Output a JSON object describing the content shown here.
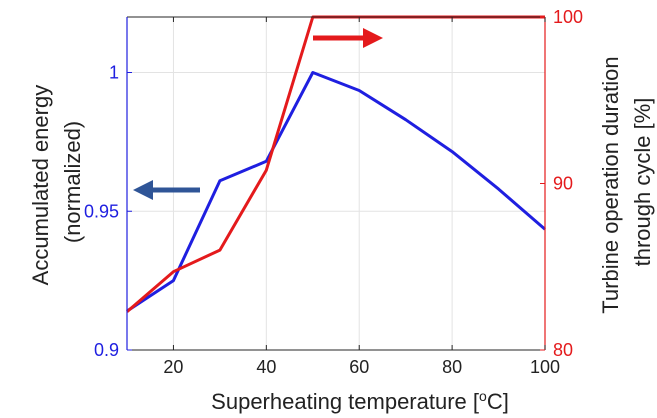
{
  "chart_data": {
    "type": "line",
    "xlabel": "Superheating temperature [",
    "xlabel_sup": "o",
    "xlabel_suffix": "C]",
    "ylabel_left": [
      "Accumulated energy",
      "(normalized)"
    ],
    "ylabel_right": [
      "Turbine operation duration",
      "through cycle [%]"
    ],
    "xlim": [
      10,
      100
    ],
    "ylim_left": [
      0.9,
      1.02
    ],
    "ylim_right": [
      80,
      100
    ],
    "x_ticks": [
      20,
      40,
      60,
      80,
      100
    ],
    "y_left_ticks": [
      "0.9",
      "0.95",
      "1"
    ],
    "y_left_tick_values": [
      0.9,
      0.95,
      1.0
    ],
    "y_right_ticks": [
      "80",
      "90",
      "100"
    ],
    "y_right_tick_values": [
      80,
      90,
      100
    ],
    "grid": true,
    "series": [
      {
        "axis": "left",
        "color": "#1f1fe0",
        "x": [
          10,
          20,
          30,
          40,
          50,
          60,
          70,
          80,
          90,
          100
        ],
        "y": [
          0.914,
          0.925,
          0.961,
          0.968,
          1.0,
          0.9935,
          0.983,
          0.9715,
          0.958,
          0.9435
        ]
      },
      {
        "axis": "right",
        "color": "#e41a1c",
        "x": [
          10,
          20,
          30,
          40,
          50,
          60,
          70,
          80,
          90,
          100
        ],
        "y": [
          82.3,
          84.7,
          86.0,
          90.8,
          100,
          100,
          100,
          100,
          100,
          100
        ]
      }
    ],
    "annotations": [
      {
        "type": "arrow",
        "direction": "left",
        "color": "#2f5597",
        "points_to": "left-axis"
      },
      {
        "type": "arrow",
        "direction": "right",
        "color": "#e41a1c",
        "points_to": "right-axis"
      }
    ]
  }
}
